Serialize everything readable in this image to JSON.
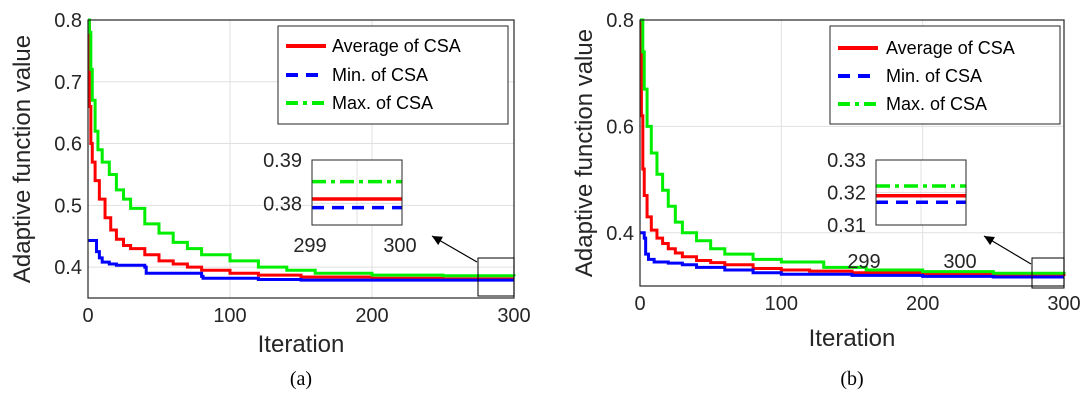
{
  "colors": {
    "average": "#ff0000",
    "min": "#0000ff",
    "max": "#00ee00",
    "grid": "#e0e0e0",
    "axis": "#262626"
  },
  "chart_data": [
    {
      "type": "line",
      "caption": "(a)",
      "xlabel": "Iteration",
      "ylabel": "Adaptive function value",
      "xlim": [
        0,
        300
      ],
      "ylim": [
        0.35,
        0.8
      ],
      "xticks": [
        "0",
        "100",
        "200",
        "300"
      ],
      "yticks": [
        "0.4",
        "0.5",
        "0.6",
        "0.7",
        "0.8"
      ],
      "grid": true,
      "legend_position": "top-right",
      "series": [
        {
          "name": "Average of CSA",
          "style": "solid",
          "x": [
            0,
            1,
            2,
            3,
            5,
            8,
            12,
            16,
            20,
            25,
            30,
            40,
            50,
            60,
            70,
            80,
            100,
            120,
            150,
            200,
            250,
            300
          ],
          "y": [
            0.8,
            0.66,
            0.6,
            0.57,
            0.54,
            0.51,
            0.48,
            0.46,
            0.445,
            0.435,
            0.43,
            0.42,
            0.41,
            0.405,
            0.4,
            0.395,
            0.39,
            0.387,
            0.384,
            0.382,
            0.381,
            0.381
          ]
        },
        {
          "name": "Min. of CSA",
          "style": "dash",
          "x": [
            0,
            5,
            6,
            8,
            10,
            15,
            20,
            40,
            41,
            80,
            81,
            120,
            150,
            200,
            250,
            300
          ],
          "y": [
            0.443,
            0.443,
            0.425,
            0.415,
            0.408,
            0.405,
            0.403,
            0.4,
            0.39,
            0.385,
            0.382,
            0.38,
            0.379,
            0.379,
            0.379,
            0.379
          ]
        },
        {
          "name": "Max. of CSA",
          "style": "dashdot",
          "x": [
            0,
            1,
            2,
            3,
            5,
            7,
            10,
            15,
            20,
            25,
            30,
            40,
            50,
            60,
            70,
            80,
            100,
            120,
            140,
            160,
            200,
            250,
            300
          ],
          "y": [
            0.8,
            0.78,
            0.72,
            0.67,
            0.62,
            0.59,
            0.57,
            0.55,
            0.525,
            0.51,
            0.495,
            0.47,
            0.455,
            0.44,
            0.43,
            0.42,
            0.41,
            0.4,
            0.395,
            0.39,
            0.387,
            0.386,
            0.385
          ]
        }
      ],
      "inset": {
        "xticks": [
          "299",
          "300"
        ],
        "yticks": [
          "0.38",
          "0.39"
        ],
        "ylim": [
          0.375,
          0.39
        ],
        "values": {
          "Average of CSA": 0.381,
          "Min. of CSA": 0.379,
          "Max. of CSA": 0.385
        }
      }
    },
    {
      "type": "line",
      "caption": "(b)",
      "xlabel": "Iteration",
      "ylabel": "Adaptive function value",
      "xlim": [
        0,
        300
      ],
      "ylim": [
        0.3,
        0.8
      ],
      "xticks": [
        "0",
        "100",
        "200",
        "300"
      ],
      "yticks": [
        "0.4",
        "0.6",
        "0.8"
      ],
      "grid": true,
      "legend_position": "top-right",
      "series": [
        {
          "name": "Average of CSA",
          "style": "solid",
          "x": [
            0,
            1,
            2,
            3,
            5,
            8,
            12,
            16,
            20,
            25,
            30,
            40,
            50,
            60,
            80,
            100,
            120,
            150,
            200,
            250,
            300
          ],
          "y": [
            0.8,
            0.62,
            0.52,
            0.47,
            0.43,
            0.405,
            0.39,
            0.38,
            0.37,
            0.362,
            0.355,
            0.348,
            0.344,
            0.34,
            0.333,
            0.33,
            0.328,
            0.325,
            0.322,
            0.32,
            0.319
          ]
        },
        {
          "name": "Min. of CSA",
          "style": "dash",
          "x": [
            0,
            3,
            4,
            6,
            10,
            20,
            30,
            40,
            60,
            80,
            100,
            150,
            200,
            250,
            300
          ],
          "y": [
            0.4,
            0.39,
            0.36,
            0.35,
            0.345,
            0.343,
            0.34,
            0.335,
            0.33,
            0.325,
            0.322,
            0.32,
            0.318,
            0.317,
            0.317
          ]
        },
        {
          "name": "Max. of CSA",
          "style": "dashdot",
          "x": [
            0,
            2,
            3,
            5,
            8,
            12,
            16,
            20,
            25,
            30,
            40,
            50,
            60,
            80,
            100,
            130,
            160,
            200,
            250,
            300
          ],
          "y": [
            0.8,
            0.74,
            0.67,
            0.6,
            0.55,
            0.51,
            0.48,
            0.45,
            0.42,
            0.4,
            0.385,
            0.37,
            0.36,
            0.35,
            0.345,
            0.335,
            0.33,
            0.327,
            0.324,
            0.322
          ]
        }
      ],
      "inset": {
        "xticks": [
          "299",
          "300"
        ],
        "yticks": [
          "0.31",
          "0.32",
          "0.33"
        ],
        "ylim": [
          0.31,
          0.33
        ],
        "values": {
          "Average of CSA": 0.319,
          "Min. of CSA": 0.317,
          "Max. of CSA": 0.322
        }
      }
    }
  ]
}
